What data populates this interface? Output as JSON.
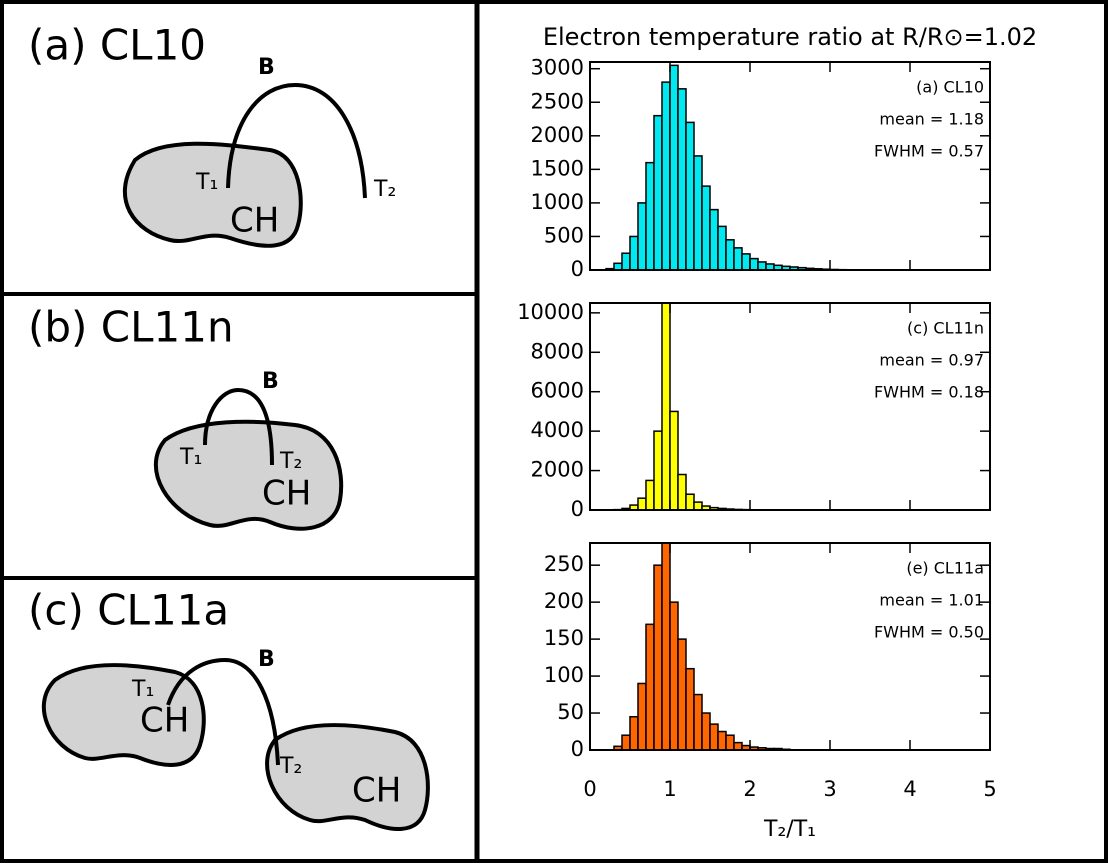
{
  "figure_title": "Electron temperature ratio at R/R⊙=1.02",
  "diagrams": [
    {
      "label": "(a) CL10",
      "field": "B",
      "footpoints": [
        "T₁",
        "T₂"
      ],
      "regions": [
        "CH"
      ]
    },
    {
      "label": "(b) CL11n",
      "field": "B",
      "footpoints": [
        "T₁",
        "T₂"
      ],
      "regions": [
        "CH"
      ]
    },
    {
      "label": "(c) CL11a",
      "field": "B",
      "footpoints": [
        "T₁",
        "T₂"
      ],
      "regions": [
        "CH",
        "CH"
      ]
    }
  ],
  "chart_data": [
    {
      "type": "histogram",
      "color": "#00e8f0",
      "annotations": [
        "(a) CL10",
        "mean =  1.18",
        "FWHM =  0.57"
      ],
      "bins": [
        0.2,
        0.3,
        0.4,
        0.5,
        0.6,
        0.7,
        0.8,
        0.9,
        1.0,
        1.1,
        1.2,
        1.3,
        1.4,
        1.5,
        1.6,
        1.7,
        1.8,
        1.9,
        2.0,
        2.1,
        2.2,
        2.3,
        2.4,
        2.5,
        2.6,
        2.7,
        2.8,
        2.9,
        3.0,
        3.1,
        3.2
      ],
      "values": [
        20,
        100,
        250,
        500,
        1000,
        1600,
        2300,
        2800,
        3050,
        2700,
        2200,
        1700,
        1250,
        900,
        650,
        450,
        330,
        240,
        170,
        120,
        90,
        70,
        55,
        45,
        35,
        25,
        18,
        12,
        8,
        5
      ],
      "xlim": [
        0,
        5
      ],
      "xticks": [
        0,
        1,
        2,
        3,
        4,
        5
      ],
      "ylim": [
        0,
        3100
      ],
      "yticks": [
        0,
        500,
        1000,
        1500,
        2000,
        2500,
        3000
      ]
    },
    {
      "type": "histogram",
      "color": "#ffff00",
      "annotations": [
        "(c) CL11n",
        "mean =  0.97",
        "FWHM =  0.18"
      ],
      "bins": [
        0.3,
        0.4,
        0.5,
        0.6,
        0.7,
        0.8,
        0.9,
        1.0,
        1.1,
        1.2,
        1.3,
        1.4,
        1.5,
        1.6,
        1.7,
        1.8,
        1.9,
        2.0,
        2.1,
        2.2,
        2.3,
        2.4,
        2.5
      ],
      "values": [
        20,
        80,
        250,
        600,
        1500,
        4000,
        10500,
        5000,
        1800,
        800,
        400,
        200,
        120,
        80,
        50,
        30,
        20,
        12,
        8,
        5,
        3,
        2
      ],
      "xlim": [
        0,
        5
      ],
      "xticks": [
        0,
        1,
        2,
        3,
        4,
        5
      ],
      "ylim": [
        0,
        10500
      ],
      "yticks": [
        0,
        2000,
        4000,
        6000,
        8000,
        10000
      ]
    },
    {
      "type": "histogram",
      "color": "#ff6600",
      "annotations": [
        "(e) CL11a",
        "mean =  1.01",
        "FWHM =  0.50"
      ],
      "bins": [
        0.3,
        0.4,
        0.5,
        0.6,
        0.7,
        0.8,
        0.9,
        1.0,
        1.1,
        1.2,
        1.3,
        1.4,
        1.5,
        1.6,
        1.7,
        1.8,
        1.9,
        2.0,
        2.1,
        2.2,
        2.3,
        2.4,
        2.5
      ],
      "values": [
        5,
        20,
        45,
        90,
        170,
        250,
        280,
        200,
        150,
        110,
        75,
        50,
        35,
        25,
        20,
        10,
        6,
        4,
        3,
        2,
        2,
        1
      ],
      "xlim": [
        0,
        5
      ],
      "xticks": [
        0,
        1,
        2,
        3,
        4,
        5
      ],
      "ylim": [
        0,
        280
      ],
      "yticks": [
        0,
        50,
        100,
        150,
        200,
        250
      ],
      "xlabel": "T₂/T₁"
    }
  ]
}
